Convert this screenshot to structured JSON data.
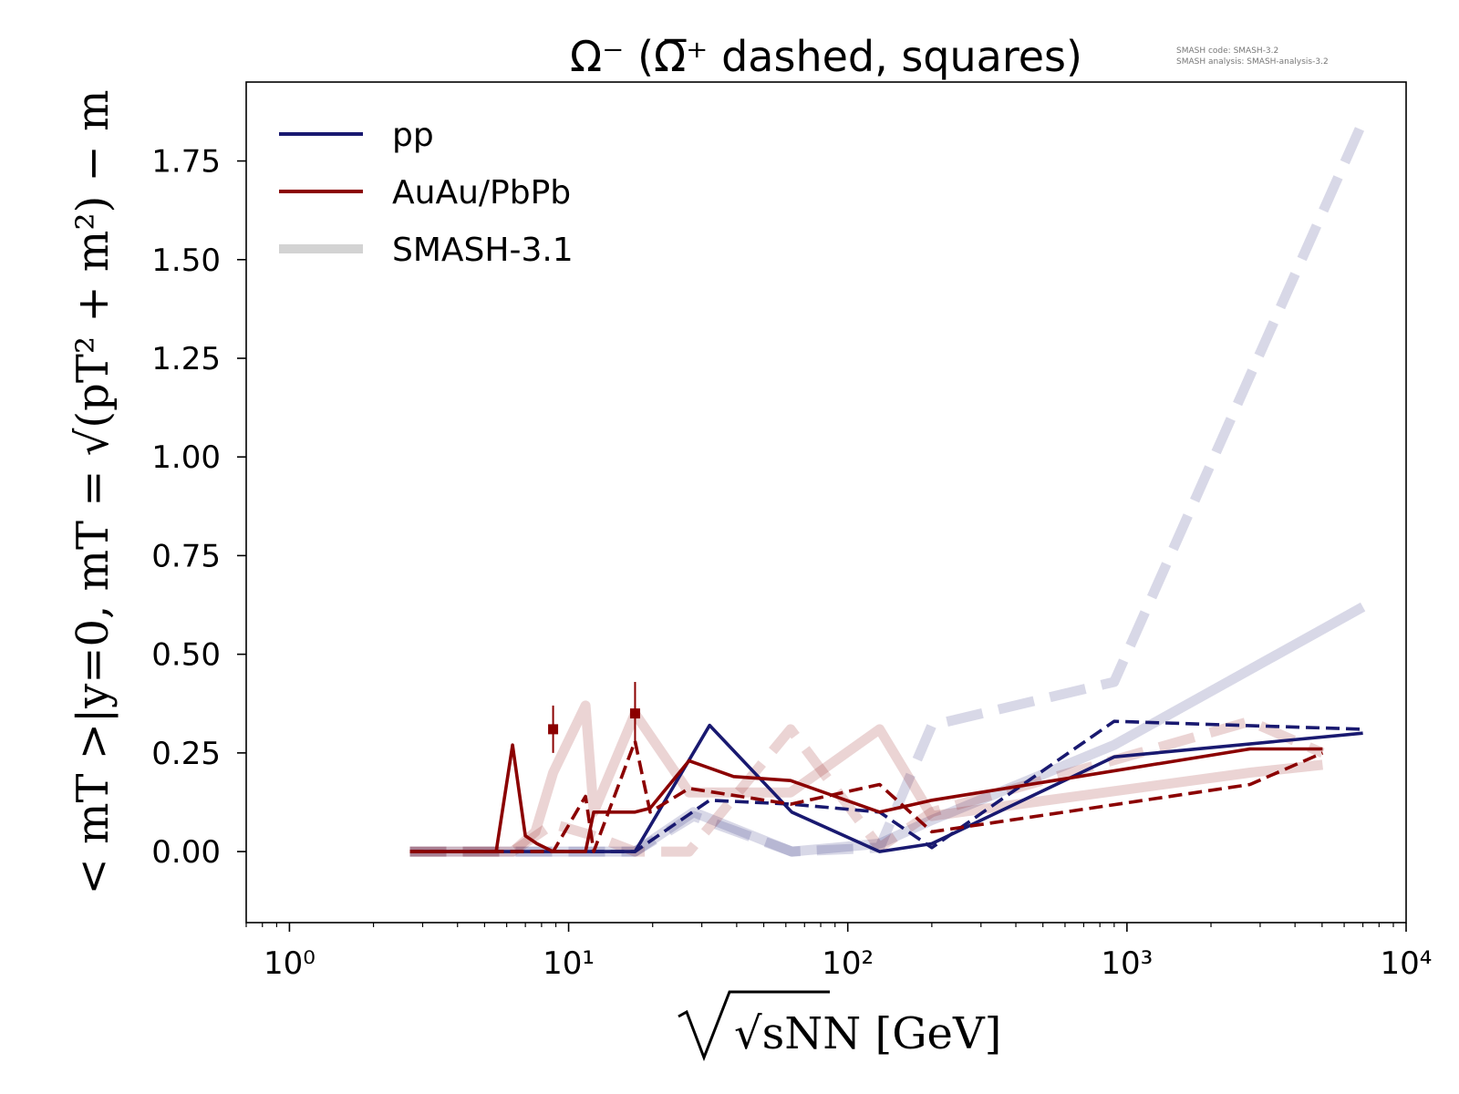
{
  "chart_data": {
    "type": "line",
    "title": "Ω⁻ (Ω̅⁺ dashed, squares)",
    "xlabel": "√sNN [GeV]",
    "ylabel": "< mT >|y=0, mT = √(pT² + m²) − m",
    "xscale": "log",
    "xlim": [
      0.7,
      10000
    ],
    "ylim": [
      -0.18,
      1.95
    ],
    "xticks": [
      1,
      10,
      100,
      1000,
      10000
    ],
    "xtick_labels": [
      "10⁰",
      "10¹",
      "10²",
      "10³",
      "10⁴"
    ],
    "yticks": [
      0.0,
      0.25,
      0.5,
      0.75,
      1.0,
      1.25,
      1.5,
      1.75
    ],
    "ytick_labels": [
      "0.00",
      "0.25",
      "0.50",
      "0.75",
      "1.00",
      "1.25",
      "1.50",
      "1.75"
    ],
    "version_note": [
      "SMASH code:      SMASH-3.2",
      "SMASH analysis: SMASH-analysis-3.2"
    ],
    "legend": {
      "position": "top-left",
      "entries": [
        {
          "label": "pp",
          "color": "#191970"
        },
        {
          "label": "AuAu/PbPb",
          "color": "#8b0000"
        },
        {
          "label": "SMASH-3.1",
          "color": "#d3d3d3"
        }
      ]
    },
    "series": [
      {
        "style": "ref-solid",
        "color": "#191970",
        "x": [
          2.7,
          5.5,
          17.3,
          28,
          63,
          130,
          200,
          900,
          7000
        ],
        "y": [
          0,
          0,
          0,
          0.1,
          0,
          0.02,
          0.08,
          0.27,
          0.62
        ]
      },
      {
        "style": "ref-dashed",
        "color": "#191970",
        "x": [
          2.7,
          5.5,
          17.3,
          28,
          63,
          130,
          200,
          900,
          7000
        ],
        "y": [
          0,
          0,
          0,
          0.09,
          0,
          0.01,
          0.32,
          0.43,
          1.85
        ]
      },
      {
        "style": "ref-solid",
        "color": "#8b0000",
        "x": [
          2.7,
          6.3,
          7.6,
          8.8,
          11.5,
          12.3,
          17.3,
          27,
          62.4,
          130,
          200,
          2760,
          5020
        ],
        "y": [
          0,
          0,
          0.05,
          0.2,
          0.37,
          0.1,
          0.35,
          0.15,
          0.15,
          0.31,
          0.09,
          0.2,
          0.22
        ]
      },
      {
        "style": "ref-dashed",
        "color": "#8b0000",
        "x": [
          2.7,
          6.3,
          8.8,
          12.3,
          17.3,
          27,
          62.4,
          130,
          200,
          2760,
          5020
        ],
        "y": [
          0,
          0,
          0.07,
          0.04,
          0,
          0,
          0.31,
          0.01,
          0.1,
          0.33,
          0.25
        ]
      },
      {
        "style": "solid",
        "color": "#191970",
        "name": "pp",
        "x": [
          2.7,
          5.5,
          17.3,
          32,
          63,
          130,
          200,
          900,
          7000
        ],
        "y": [
          0,
          0,
          0,
          0.32,
          0.1,
          0,
          0.02,
          0.24,
          0.3
        ]
      },
      {
        "style": "dashed",
        "color": "#191970",
        "x": [
          2.7,
          5.5,
          17.3,
          32,
          63,
          130,
          200,
          900,
          7000
        ],
        "y": [
          0,
          0,
          0,
          0.13,
          0.12,
          0.1,
          0.01,
          0.33,
          0.31
        ]
      },
      {
        "style": "solid",
        "color": "#8b0000",
        "name": "AuAu/PbPb",
        "x": [
          2.7,
          5.5,
          6.3,
          7.0,
          7.7,
          8.8,
          11.5,
          12.3,
          17.3,
          19.6,
          27,
          39,
          62.4,
          130,
          200,
          2760,
          5020
        ],
        "y": [
          0,
          0,
          0.27,
          0.04,
          0.02,
          0,
          0,
          0.1,
          0.1,
          0.11,
          0.23,
          0.19,
          0.18,
          0.1,
          0.13,
          0.26,
          0.26
        ]
      },
      {
        "style": "dashed",
        "color": "#8b0000",
        "x": [
          2.7,
          6.3,
          8.8,
          11.5,
          12.3,
          17.3,
          19.6,
          27,
          62.4,
          130,
          200,
          2760,
          5020
        ],
        "y": [
          0,
          0,
          0,
          0.14,
          0,
          0.28,
          0.1,
          0.16,
          0.12,
          0.17,
          0.05,
          0.17,
          0.25
        ]
      }
    ],
    "points": [
      {
        "marker": "square",
        "color": "#8b0000",
        "x": 8.8,
        "y": 0.31,
        "yerr": 0.06
      },
      {
        "marker": "square",
        "color": "#8b0000",
        "x": 17.3,
        "y": 0.35,
        "yerr": 0.08
      }
    ]
  }
}
